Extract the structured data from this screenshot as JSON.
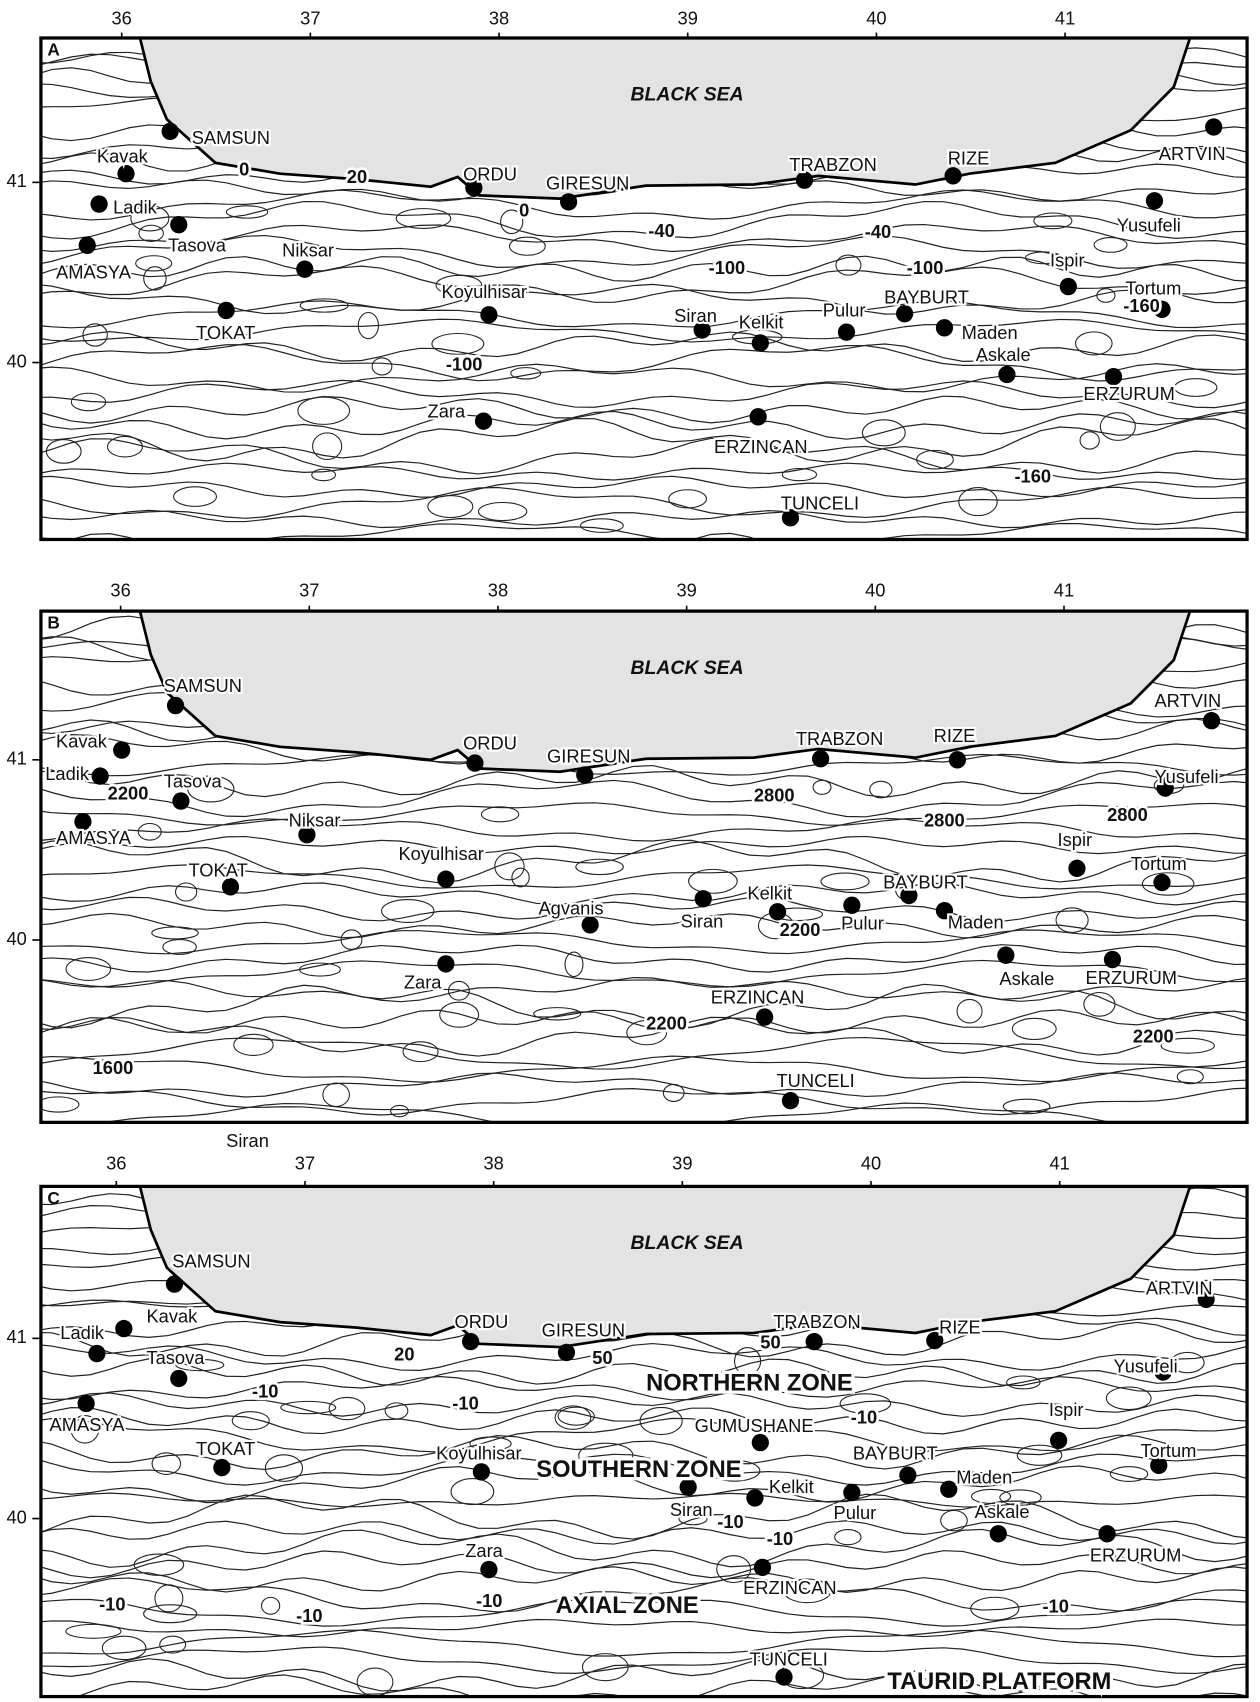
{
  "panels": [
    {
      "letter": "A",
      "sea_label": "BLACK SEA",
      "lon_ticks": [
        36,
        37,
        38,
        39,
        40,
        41
      ],
      "lat_ticks": [
        41,
        40
      ],
      "cities": [
        "SAMSUN",
        "Kavak",
        "Ladik",
        "Tasova",
        "AMASYA",
        "Niksar",
        "TOKAT",
        "ORDU",
        "GIRESUN",
        "Koyulhisar",
        "Zara",
        "TRABZON",
        "RIZE",
        "ARTVIN",
        "Yusufeli",
        "Ispir",
        "Tortum",
        "Siran",
        "Kelkit",
        "Pulur",
        "BAYBURT",
        "Maden",
        "Askale",
        "ERZURUM",
        "ERZINCAN",
        "TUNCELI"
      ],
      "contour_labels": [
        "0",
        "20",
        "0",
        "-40",
        "-40",
        "-100",
        "-100",
        "-160",
        "-100",
        "-160"
      ]
    },
    {
      "letter": "B",
      "sea_label": "BLACK SEA",
      "lon_ticks": [
        36,
        37,
        38,
        39,
        40,
        41
      ],
      "lat_ticks": [
        41,
        40
      ],
      "cities": [
        "SAMSUN",
        "Kavak",
        "Ladik",
        "Tasova",
        "AMASYA",
        "Niksar",
        "TOKAT",
        "ORDU",
        "GIRESUN",
        "Koyulhisar",
        "Agvanis",
        "Zara",
        "TRABZON",
        "RIZE",
        "ARTVIN",
        "Yusufeli",
        "Ispir",
        "Tortum",
        "Siran",
        "Kelkit",
        "Pulur",
        "BAYBURT",
        "Maden",
        "Askale",
        "ERZURUM",
        "ERZINCAN",
        "TUNCELI"
      ],
      "contour_labels": [
        "2200",
        "2800",
        "2800",
        "2800",
        "2200",
        "2200",
        "2200",
        "1600"
      ],
      "other_labels": [
        "Siran"
      ]
    },
    {
      "letter": "C",
      "sea_label": "BLACK SEA",
      "lon_ticks": [
        36,
        37,
        38,
        39,
        40,
        41
      ],
      "lat_ticks": [
        41,
        40
      ],
      "cities": [
        "SAMSUN",
        "Kavak",
        "Ladik",
        "Tasova",
        "AMASYA",
        "TOKAT",
        "ORDU",
        "GIRESUN",
        "Koyulhisar",
        "Zara",
        "TRABZON",
        "RIZE",
        "ARTVIN",
        "Yusufeli",
        "Ispir",
        "Tortum",
        "GUMUSHANE",
        "BAYBURT",
        "Maden",
        "Siran",
        "Kelkit",
        "Pulur",
        "Askale",
        "ERZURUM",
        "ERZINCAN",
        "TUNCELI"
      ],
      "contour_labels": [
        "20",
        "50",
        "50",
        "-10",
        "-10",
        "-10",
        "-10",
        "-10",
        "-10",
        "-10",
        "-10",
        "-10"
      ],
      "zone_labels": [
        "NORTHERN ZONE",
        "SOUTHERN ZONE",
        "AXIAL ZONE",
        "TAURID PLATFORM"
      ]
    }
  ]
}
